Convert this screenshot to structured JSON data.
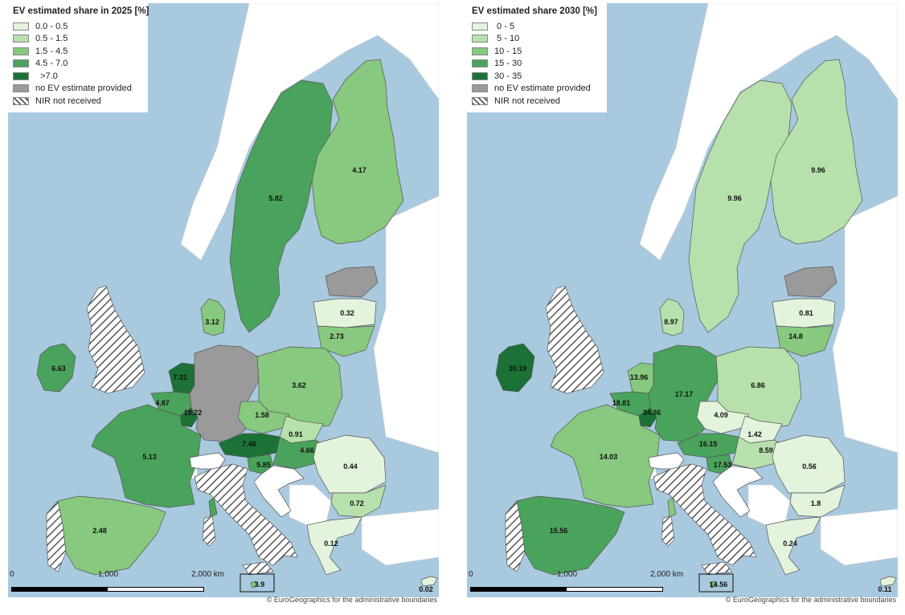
{
  "colors": {
    "sea": "#a9c9df",
    "land_outside": "#ffffff",
    "border": "#555555",
    "no_estimate": "#9a9a9a",
    "hatch": "#555555"
  },
  "maps": [
    {
      "id": "left",
      "legend": {
        "title": "EV estimated share in 2025 [%]",
        "items": [
          {
            "label": "0.0 - 0.5",
            "color": "#e4f3dc",
            "pattern": "solid"
          },
          {
            "label": "0.5 - 1.5",
            "color": "#b8e0ad",
            "pattern": "solid"
          },
          {
            "label": "1.5 - 4.5",
            "color": "#87c97e",
            "pattern": "solid"
          },
          {
            "label": "4.5 - 7.0",
            "color": "#4aa35c",
            "pattern": "solid"
          },
          {
            "label": "  >7.0",
            "color": "#1c7136",
            "pattern": "solid"
          },
          {
            "label": "no EV estimate provided",
            "color": "#9a9a9a",
            "pattern": "solid"
          },
          {
            "label": "NIR not received",
            "color": "#ffffff",
            "pattern": "hatch"
          }
        ]
      },
      "regions": [
        {
          "name": "Finland",
          "value": "4.17",
          "color": "#87c97e",
          "pattern": "solid"
        },
        {
          "name": "Sweden",
          "value": "5.82",
          "color": "#4aa35c",
          "pattern": "solid"
        },
        {
          "name": "Estonia",
          "value": "",
          "color": "#9a9a9a",
          "pattern": "solid"
        },
        {
          "name": "Latvia",
          "value": "0.32",
          "color": "#e4f3dc",
          "pattern": "solid"
        },
        {
          "name": "Lithuania",
          "value": "2.73",
          "color": "#87c97e",
          "pattern": "solid"
        },
        {
          "name": "Denmark",
          "value": "3.12",
          "color": "#87c97e",
          "pattern": "solid"
        },
        {
          "name": "Ireland",
          "value": "6.63",
          "color": "#4aa35c",
          "pattern": "solid"
        },
        {
          "name": "United Kingdom",
          "value": "",
          "color": "#ffffff",
          "pattern": "hatch"
        },
        {
          "name": "Netherlands",
          "value": "7.31",
          "color": "#1c7136",
          "pattern": "solid"
        },
        {
          "name": "Belgium",
          "value": "4.87",
          "color": "#4aa35c",
          "pattern": "solid"
        },
        {
          "name": "Luxembourg",
          "value": "19.22",
          "color": "#1c7136",
          "pattern": "solid"
        },
        {
          "name": "Germany",
          "value": "",
          "color": "#9a9a9a",
          "pattern": "solid"
        },
        {
          "name": "Poland",
          "value": "3.62",
          "color": "#87c97e",
          "pattern": "solid"
        },
        {
          "name": "Czechia",
          "value": "1.58",
          "color": "#87c97e",
          "pattern": "solid"
        },
        {
          "name": "Slovakia",
          "value": "0.91",
          "color": "#b8e0ad",
          "pattern": "solid"
        },
        {
          "name": "Austria",
          "value": "7.46",
          "color": "#1c7136",
          "pattern": "solid"
        },
        {
          "name": "Hungary",
          "value": "4.66",
          "color": "#4aa35c",
          "pattern": "solid"
        },
        {
          "name": "Slovenia",
          "value": "5.85",
          "color": "#4aa35c",
          "pattern": "solid"
        },
        {
          "name": "Croatia",
          "value": "",
          "color": "#ffffff",
          "pattern": "solid"
        },
        {
          "name": "Romania",
          "value": "0.44",
          "color": "#e4f3dc",
          "pattern": "solid"
        },
        {
          "name": "Bulgaria",
          "value": "0.72",
          "color": "#b8e0ad",
          "pattern": "solid"
        },
        {
          "name": "Greece",
          "value": "0.12",
          "color": "#e4f3dc",
          "pattern": "solid"
        },
        {
          "name": "France",
          "value": "5.13",
          "color": "#4aa35c",
          "pattern": "solid"
        },
        {
          "name": "Switzerland",
          "value": "",
          "color": "#ffffff",
          "pattern": "solid"
        },
        {
          "name": "Italy",
          "value": "",
          "color": "#ffffff",
          "pattern": "hatch"
        },
        {
          "name": "Spain",
          "value": "2.48",
          "color": "#87c97e",
          "pattern": "solid"
        },
        {
          "name": "Portugal",
          "value": "",
          "color": "#ffffff",
          "pattern": "hatch"
        },
        {
          "name": "Malta",
          "value": "3.9",
          "color": "#87c97e",
          "pattern": "solid"
        },
        {
          "name": "Cyprus",
          "value": "0.02",
          "color": "#e4f3dc",
          "pattern": "solid"
        }
      ],
      "scale": {
        "label0": "0",
        "label1": "1,000",
        "label2": "2,000 km"
      },
      "credit": "© EuroGeographics for the administrative boundaries"
    },
    {
      "id": "right",
      "legend": {
        "title": "EV estimated share 2030 [%]",
        "items": [
          {
            "label": " 0 - 5",
            "color": "#e4f3dc",
            "pattern": "solid"
          },
          {
            "label": " 5 - 10",
            "color": "#b8e0ad",
            "pattern": "solid"
          },
          {
            "label": "10 - 15",
            "color": "#87c97e",
            "pattern": "solid"
          },
          {
            "label": "15 - 30",
            "color": "#4aa35c",
            "pattern": "solid"
          },
          {
            "label": "30 - 35",
            "color": "#1c7136",
            "pattern": "solid"
          },
          {
            "label": "no EV estimate provided",
            "color": "#9a9a9a",
            "pattern": "solid"
          },
          {
            "label": "NIR not received",
            "color": "#ffffff",
            "pattern": "hatch"
          }
        ]
      },
      "regions": [
        {
          "name": "Finland",
          "value": "9.96",
          "color": "#b8e0ad",
          "pattern": "solid"
        },
        {
          "name": "Sweden",
          "value": "9.96",
          "color": "#b8e0ad",
          "pattern": "solid"
        },
        {
          "name": "Estonia",
          "value": "",
          "color": "#9a9a9a",
          "pattern": "solid"
        },
        {
          "name": "Latvia",
          "value": "0.81",
          "color": "#e4f3dc",
          "pattern": "solid"
        },
        {
          "name": "Lithuania",
          "value": "14.8",
          "color": "#87c97e",
          "pattern": "solid"
        },
        {
          "name": "Denmark",
          "value": "8.97",
          "color": "#b8e0ad",
          "pattern": "solid"
        },
        {
          "name": "Ireland",
          "value": "30.19",
          "color": "#1c7136",
          "pattern": "solid"
        },
        {
          "name": "United Kingdom",
          "value": "",
          "color": "#ffffff",
          "pattern": "hatch"
        },
        {
          "name": "Netherlands",
          "value": "13.96",
          "color": "#87c97e",
          "pattern": "solid"
        },
        {
          "name": "Belgium",
          "value": "18.81",
          "color": "#4aa35c",
          "pattern": "solid"
        },
        {
          "name": "Luxembourg",
          "value": "34.36",
          "color": "#1c7136",
          "pattern": "solid"
        },
        {
          "name": "Germany",
          "value": "17.17",
          "color": "#4aa35c",
          "pattern": "solid"
        },
        {
          "name": "Poland",
          "value": "6.86",
          "color": "#b8e0ad",
          "pattern": "solid"
        },
        {
          "name": "Czechia",
          "value": "4.09",
          "color": "#e4f3dc",
          "pattern": "solid"
        },
        {
          "name": "Slovakia",
          "value": "1.42",
          "color": "#e4f3dc",
          "pattern": "solid"
        },
        {
          "name": "Austria",
          "value": "16.15",
          "color": "#4aa35c",
          "pattern": "solid"
        },
        {
          "name": "Hungary",
          "value": "8.59",
          "color": "#b8e0ad",
          "pattern": "solid"
        },
        {
          "name": "Slovenia",
          "value": "17.53",
          "color": "#4aa35c",
          "pattern": "solid"
        },
        {
          "name": "Croatia",
          "value": "",
          "color": "#ffffff",
          "pattern": "solid"
        },
        {
          "name": "Romania",
          "value": "0.56",
          "color": "#e4f3dc",
          "pattern": "solid"
        },
        {
          "name": "Bulgaria",
          "value": "1.8",
          "color": "#e4f3dc",
          "pattern": "solid"
        },
        {
          "name": "Greece",
          "value": "0.24",
          "color": "#e4f3dc",
          "pattern": "solid"
        },
        {
          "name": "France",
          "value": "14.03",
          "color": "#87c97e",
          "pattern": "solid"
        },
        {
          "name": "Switzerland",
          "value": "",
          "color": "#ffffff",
          "pattern": "solid"
        },
        {
          "name": "Italy",
          "value": "",
          "color": "#ffffff",
          "pattern": "hatch"
        },
        {
          "name": "Spain",
          "value": "15.56",
          "color": "#4aa35c",
          "pattern": "solid"
        },
        {
          "name": "Portugal",
          "value": "",
          "color": "#ffffff",
          "pattern": "hatch"
        },
        {
          "name": "Malta",
          "value": "14.56",
          "color": "#87c97e",
          "pattern": "solid"
        },
        {
          "name": "Cyprus",
          "value": "0.11",
          "color": "#e4f3dc",
          "pattern": "solid"
        }
      ],
      "scale": {
        "label0": "0",
        "label1": "1,000",
        "label2": "2,000 km"
      },
      "credit": "© EuroGeographics for the administrative boundaries"
    }
  ]
}
